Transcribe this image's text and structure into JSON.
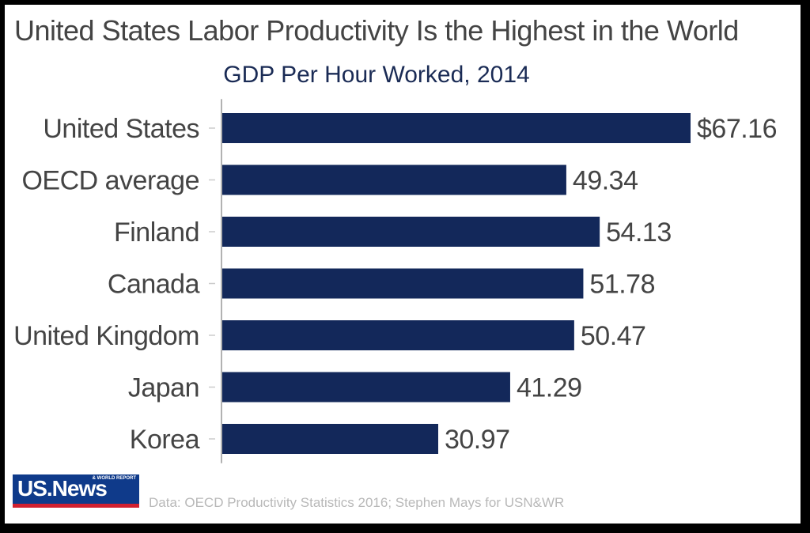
{
  "chart_data": {
    "type": "bar",
    "orientation": "horizontal",
    "title": "United States Labor Productivity Is the Highest in the World",
    "subtitle": "GDP Per Hour Worked, 2014",
    "categories": [
      "United States",
      "OECD average",
      "Finland",
      "Canada",
      "United Kingdom",
      "Japan",
      "Korea"
    ],
    "values": [
      67.16,
      49.34,
      54.13,
      51.78,
      50.47,
      41.29,
      30.97
    ],
    "value_labels": [
      "$67.16",
      "49.34",
      "54.13",
      "51.78",
      "50.47",
      "41.29",
      "30.97"
    ],
    "xlim": [
      0,
      67.16
    ],
    "grid": false,
    "bar_color": "#13285a"
  },
  "logo": {
    "text": "US.News",
    "tagline": "& WORLD REPORT"
  },
  "source": "Data: OECD Productivity Statistics 2016; Stephen Mays for USN&WR",
  "colors": {
    "bar": "#13285a",
    "title": "#444444",
    "subtitle": "#1a2b55",
    "logo_blue": "#0f3a8a",
    "logo_red": "#d2202f"
  }
}
